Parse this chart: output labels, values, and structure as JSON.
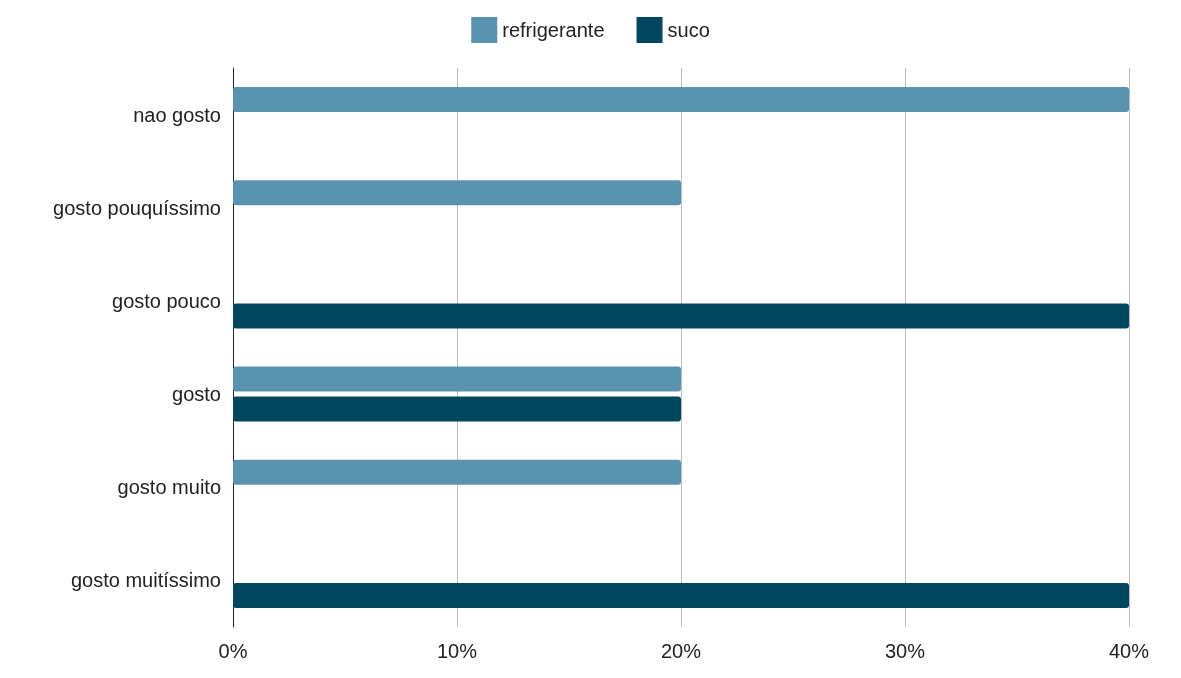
{
  "chart_data": {
    "type": "bar",
    "orientation": "horizontal",
    "categories": [
      "nao gosto",
      "gosto pouquíssimo",
      "gosto pouco",
      "gosto",
      "gosto muito",
      "gosto muitíssimo"
    ],
    "series": [
      {
        "name": "refrigerante",
        "color": "#5a93b0",
        "values": [
          40,
          20,
          0,
          20,
          20,
          0
        ]
      },
      {
        "name": "suco",
        "color": "#00465f",
        "values": [
          0,
          0,
          40,
          20,
          0,
          40
        ]
      }
    ],
    "xlim": [
      0,
      40
    ],
    "xticks": [
      {
        "value": 0,
        "label": "0%"
      },
      {
        "value": 10,
        "label": "10%"
      },
      {
        "value": 20,
        "label": "20%"
      },
      {
        "value": 30,
        "label": "30%"
      },
      {
        "value": 40,
        "label": "40%"
      }
    ],
    "grid": "x",
    "legend": "top"
  }
}
